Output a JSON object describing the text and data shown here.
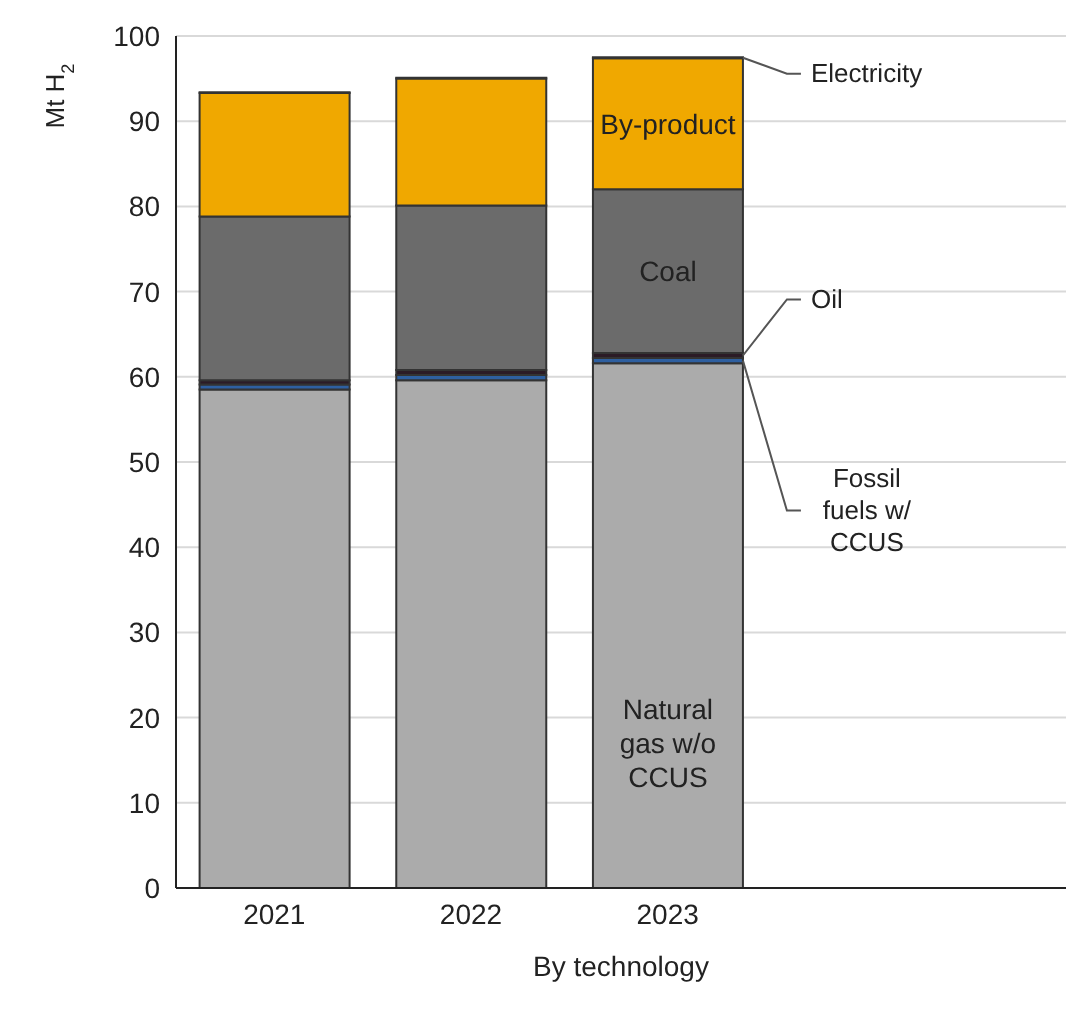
{
  "chart_data": {
    "type": "bar",
    "stacked": true,
    "xlabel": "By technology",
    "ylabel": "Mt H$_{2}$",
    "categories": [
      "2021",
      "2022",
      "2023"
    ],
    "series": [
      {
        "name": "Natural gas w/o CCUS",
        "color": "#ababab",
        "values": [
          58.5,
          59.6,
          61.6
        ]
      },
      {
        "name": "Fossil fuels w/ CCUS",
        "color": "#2e5fa0",
        "values": [
          0.6,
          0.6,
          0.6
        ]
      },
      {
        "name": "Oil",
        "color": "#2b1b26",
        "values": [
          0.5,
          0.6,
          0.6
        ]
      },
      {
        "name": "Coal",
        "color": "#6b6b6b",
        "values": [
          19.2,
          19.3,
          19.2
        ]
      },
      {
        "name": "By-product",
        "color": "#f0a800",
        "values": [
          14.5,
          14.9,
          15.4
        ]
      },
      {
        "name": "Electricity",
        "color": "#3a3a3a",
        "values": [
          0.1,
          0.1,
          0.1
        ]
      }
    ],
    "ylim": [
      0,
      100
    ],
    "yticks": [
      0,
      10,
      20,
      30,
      40,
      50,
      60,
      70,
      80,
      90,
      100
    ],
    "grid": "y",
    "legend": false
  }
}
